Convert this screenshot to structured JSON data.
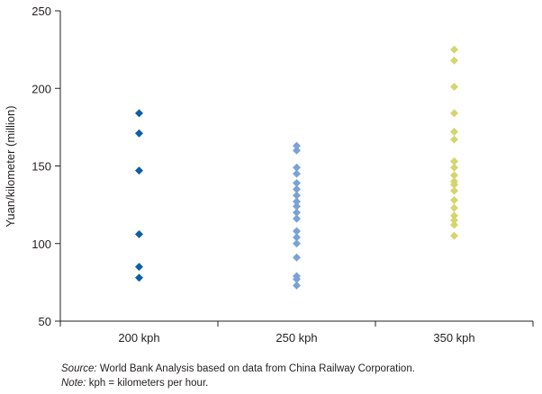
{
  "chart_data": {
    "type": "scatter",
    "marker": "diamond",
    "ylabel": "Yuan/kilometer (million)",
    "xlabel": "",
    "ylim": [
      50,
      250
    ],
    "yticks": [
      50,
      100,
      150,
      200,
      250
    ],
    "categories": [
      "200 kph",
      "250 kph",
      "350 kph"
    ],
    "grid": false,
    "series": [
      {
        "category": "200 kph",
        "color": "#0d5ea8",
        "values": [
          184,
          171,
          147,
          106,
          85,
          78
        ]
      },
      {
        "category": "250 kph",
        "color": "#7aa2d6",
        "values": [
          163,
          160,
          149,
          145,
          139,
          135,
          131,
          127,
          124,
          120,
          116,
          108,
          104,
          100,
          91,
          79,
          77,
          73
        ]
      },
      {
        "category": "350 kph",
        "color": "#d5d56e",
        "values": [
          225,
          218,
          201,
          184,
          172,
          167,
          153,
          149,
          144,
          140,
          138,
          134,
          128,
          123,
          118,
          115,
          112,
          105
        ]
      }
    ]
  },
  "notes": {
    "source_label": "Source:",
    "source_text": " World Bank Analysis based on data from China Railway Corporation.",
    "note_label": "Note:",
    "note_text": " kph = kilometers per hour."
  }
}
